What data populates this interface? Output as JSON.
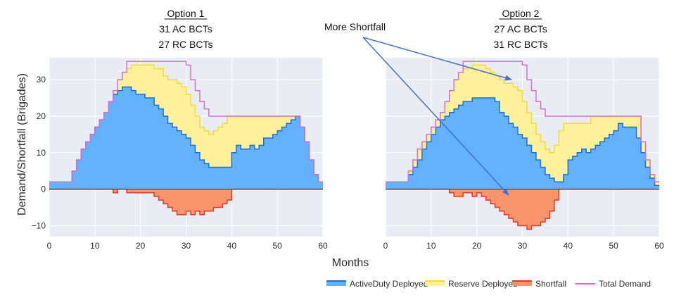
{
  "annotation": {
    "text": "More Shortfall"
  },
  "ylabel": "Demand/Shortfall (Brigades)",
  "xlabel": "Months",
  "legend": [
    {
      "name": "ActiveDuty Deployed",
      "color": "#1f6fd6",
      "swatch": "#62b2ff"
    },
    {
      "name": "Reserve Deployed",
      "color": "#f1dc3a",
      "swatch": "#fff09a"
    },
    {
      "name": "Shortfall",
      "color": "#e03a2c",
      "swatch": "#f9946b"
    },
    {
      "name": "Total Demand",
      "color": "#d66fd2",
      "swatch": null
    }
  ],
  "colors": {
    "active_fill": "#62b2ff",
    "active_line": "#1f6fd6",
    "reserve_fill": "#fff09a",
    "reserve_line": "#f1dc3a",
    "shortfall_fill": "#f9946b",
    "shortfall_line": "#e03a2c",
    "demand_line": "#d66fd2",
    "plot_bg": "#e9ecf3",
    "grid": "#ffffff",
    "arrow": "#4472c4"
  },
  "chart_data": [
    {
      "type": "area",
      "title_lines": [
        "Option 1",
        "31 AC BCTs",
        "27 RC BCTs"
      ],
      "xlabel": "Months",
      "ylabel": "Demand/Shortfall (Brigades)",
      "xlim": [
        0,
        60
      ],
      "ylim": [
        -13,
        36
      ],
      "xticks": [
        0,
        10,
        20,
        30,
        40,
        50,
        60
      ],
      "yticks": [
        -10,
        0,
        10,
        20,
        30
      ],
      "grid": true,
      "series": [
        {
          "name": "Total Demand",
          "x": [
            0,
            4,
            5,
            6,
            7,
            8,
            9,
            10,
            11,
            12,
            13,
            14,
            15,
            16,
            17,
            18,
            19,
            20,
            21,
            22,
            23,
            24,
            25,
            26,
            27,
            28,
            29,
            30,
            31,
            32,
            33,
            34,
            35,
            36,
            37,
            38,
            39,
            40,
            41,
            42,
            43,
            44,
            45,
            46,
            47,
            48,
            49,
            50,
            51,
            52,
            53,
            54,
            55,
            56,
            57,
            58,
            59,
            60
          ],
          "y": [
            2,
            2,
            5,
            8,
            11,
            13,
            15,
            17,
            19,
            21,
            24,
            27,
            30,
            32,
            35,
            35,
            35,
            35,
            35,
            35,
            35,
            35,
            35,
            35,
            35,
            35,
            35,
            34,
            30,
            27,
            24,
            22,
            20,
            20,
            20,
            20,
            20,
            20,
            20,
            20,
            20,
            20,
            20,
            20,
            20,
            20,
            20,
            20,
            20,
            20,
            20,
            20,
            17,
            13,
            8,
            4,
            2,
            2
          ]
        },
        {
          "name": "ActiveDuty Deployed",
          "x": [
            0,
            4,
            5,
            6,
            7,
            8,
            9,
            10,
            11,
            12,
            13,
            14,
            15,
            16,
            17,
            18,
            19,
            20,
            21,
            22,
            23,
            24,
            25,
            26,
            27,
            28,
            29,
            30,
            31,
            32,
            33,
            34,
            35,
            36,
            37,
            38,
            39,
            40,
            41,
            42,
            43,
            44,
            45,
            46,
            47,
            48,
            49,
            50,
            51,
            52,
            53,
            54,
            55,
            56,
            57,
            58,
            59,
            60
          ],
          "y": [
            2,
            2,
            5,
            8,
            11,
            13,
            15,
            17,
            19,
            21,
            24,
            26,
            27,
            28,
            28,
            27,
            26,
            26,
            25,
            25,
            23,
            22,
            20,
            18,
            17,
            16,
            15,
            14,
            12,
            10,
            8,
            7,
            6,
            6,
            6,
            6,
            6,
            10,
            12,
            11,
            11,
            12,
            11,
            12,
            14,
            14,
            15,
            16,
            17,
            18,
            19,
            20,
            17,
            13,
            8,
            4,
            2,
            2
          ]
        },
        {
          "name": "Reserve Deployed",
          "x": [
            0,
            4,
            5,
            6,
            7,
            8,
            9,
            10,
            11,
            12,
            13,
            14,
            15,
            16,
            17,
            18,
            19,
            20,
            21,
            22,
            23,
            24,
            25,
            26,
            27,
            28,
            29,
            30,
            31,
            32,
            33,
            34,
            35,
            36,
            37,
            38,
            39,
            40,
            41,
            42,
            43,
            44,
            45,
            46,
            47,
            48,
            49,
            50,
            51,
            52,
            53,
            54,
            55,
            56,
            57,
            58,
            59,
            60
          ],
          "y": [
            2,
            2,
            5,
            8,
            11,
            13,
            15,
            17,
            19,
            21,
            24,
            27,
            30,
            32,
            33,
            34,
            34,
            34,
            34,
            34,
            33,
            33,
            31,
            30,
            30,
            29,
            28,
            26,
            23,
            20,
            17,
            16,
            15,
            16,
            17,
            18,
            20,
            20,
            20,
            20,
            20,
            20,
            20,
            20,
            20,
            20,
            20,
            20,
            20,
            20,
            20,
            20,
            17,
            13,
            8,
            4,
            2,
            2
          ]
        },
        {
          "name": "Shortfall",
          "x": [
            0,
            13,
            14,
            15,
            16,
            17,
            18,
            19,
            20,
            21,
            22,
            23,
            24,
            25,
            26,
            27,
            28,
            29,
            30,
            31,
            32,
            33,
            34,
            35,
            36,
            37,
            38,
            39,
            40,
            60
          ],
          "y": [
            0,
            0,
            -1,
            0,
            0,
            -1,
            -1,
            -1,
            -1,
            -1,
            -1,
            -2,
            -3,
            -4,
            -5,
            -6,
            -7,
            -7,
            -6,
            -7,
            -6,
            -7,
            -6,
            -6,
            -5,
            -5,
            -4,
            -3,
            0,
            0
          ]
        }
      ]
    },
    {
      "type": "area",
      "title_lines": [
        "Option 2",
        "27 AC BCTs",
        "31 RC BCTs"
      ],
      "xlabel": "Months",
      "xlim": [
        0,
        60
      ],
      "ylim": [
        -13,
        36
      ],
      "xticks": [
        0,
        10,
        20,
        30,
        40,
        50,
        60
      ],
      "yticks": [
        -10,
        0,
        10,
        20,
        30
      ],
      "grid": true,
      "series": [
        {
          "name": "Total Demand",
          "x": [
            0,
            4,
            5,
            6,
            7,
            8,
            9,
            10,
            11,
            12,
            13,
            14,
            15,
            16,
            17,
            18,
            19,
            20,
            21,
            22,
            23,
            24,
            25,
            26,
            27,
            28,
            29,
            30,
            31,
            32,
            33,
            34,
            35,
            36,
            37,
            38,
            39,
            40,
            41,
            42,
            43,
            44,
            45,
            46,
            47,
            48,
            49,
            50,
            51,
            52,
            53,
            54,
            55,
            56,
            57,
            58,
            59,
            60
          ],
          "y": [
            2,
            2,
            5,
            8,
            11,
            13,
            15,
            17,
            19,
            21,
            24,
            27,
            30,
            32,
            35,
            35,
            35,
            35,
            35,
            35,
            35,
            35,
            35,
            35,
            35,
            35,
            35,
            34,
            30,
            27,
            24,
            22,
            20,
            20,
            20,
            20,
            20,
            20,
            20,
            20,
            20,
            20,
            20,
            20,
            20,
            20,
            20,
            20,
            20,
            20,
            20,
            20,
            20,
            13,
            8,
            4,
            2,
            2
          ]
        },
        {
          "name": "ActiveDuty Deployed",
          "x": [
            0,
            4,
            5,
            6,
            7,
            8,
            9,
            10,
            11,
            12,
            13,
            14,
            15,
            16,
            17,
            18,
            19,
            20,
            21,
            22,
            23,
            24,
            25,
            26,
            27,
            28,
            29,
            30,
            31,
            32,
            33,
            34,
            35,
            36,
            37,
            38,
            39,
            40,
            41,
            42,
            43,
            44,
            45,
            46,
            47,
            48,
            49,
            50,
            51,
            52,
            53,
            54,
            55,
            56,
            57,
            58,
            59,
            60
          ],
          "y": [
            2,
            2,
            4,
            6,
            8,
            11,
            13,
            15,
            17,
            19,
            20,
            21,
            22,
            23,
            24,
            24,
            25,
            25,
            25,
            25,
            25,
            24,
            21,
            20,
            18,
            17,
            15,
            14,
            12,
            10,
            8,
            6,
            4,
            3,
            2,
            2,
            4,
            8,
            9,
            10,
            11,
            10,
            11,
            12,
            13,
            14,
            15,
            16,
            18,
            17,
            17,
            17,
            14,
            10,
            6,
            3,
            1,
            1
          ]
        },
        {
          "name": "Reserve Deployed",
          "x": [
            0,
            4,
            5,
            6,
            7,
            8,
            9,
            10,
            11,
            12,
            13,
            14,
            15,
            16,
            17,
            18,
            19,
            20,
            21,
            22,
            23,
            24,
            25,
            26,
            27,
            28,
            29,
            30,
            31,
            32,
            33,
            34,
            35,
            36,
            37,
            38,
            39,
            40,
            41,
            42,
            43,
            44,
            45,
            46,
            47,
            48,
            49,
            50,
            51,
            52,
            53,
            54,
            55,
            56,
            57,
            58,
            59,
            60
          ],
          "y": [
            2,
            2,
            5,
            8,
            11,
            13,
            15,
            17,
            19,
            21,
            24,
            27,
            30,
            32,
            33,
            33,
            34,
            34,
            34,
            33,
            32,
            31,
            30,
            29,
            29,
            28,
            27,
            24,
            21,
            18,
            15,
            13,
            11,
            10,
            12,
            16,
            18,
            18,
            18,
            18,
            18,
            18,
            20,
            20,
            20,
            20,
            20,
            20,
            20,
            20,
            20,
            20,
            20,
            13,
            8,
            4,
            2,
            2
          ]
        },
        {
          "name": "Shortfall",
          "x": [
            0,
            13,
            14,
            15,
            16,
            17,
            18,
            19,
            20,
            21,
            22,
            23,
            24,
            25,
            26,
            27,
            28,
            29,
            30,
            31,
            32,
            33,
            34,
            35,
            36,
            37,
            38,
            60
          ],
          "y": [
            0,
            0,
            -1,
            -2,
            -2,
            -1,
            -1,
            -2,
            -1,
            -2,
            -3,
            -4,
            -5,
            -6,
            -7,
            -8,
            -9,
            -10,
            -10,
            -11,
            -10,
            -10,
            -9,
            -8,
            -6,
            -3,
            0,
            0
          ]
        }
      ]
    }
  ]
}
